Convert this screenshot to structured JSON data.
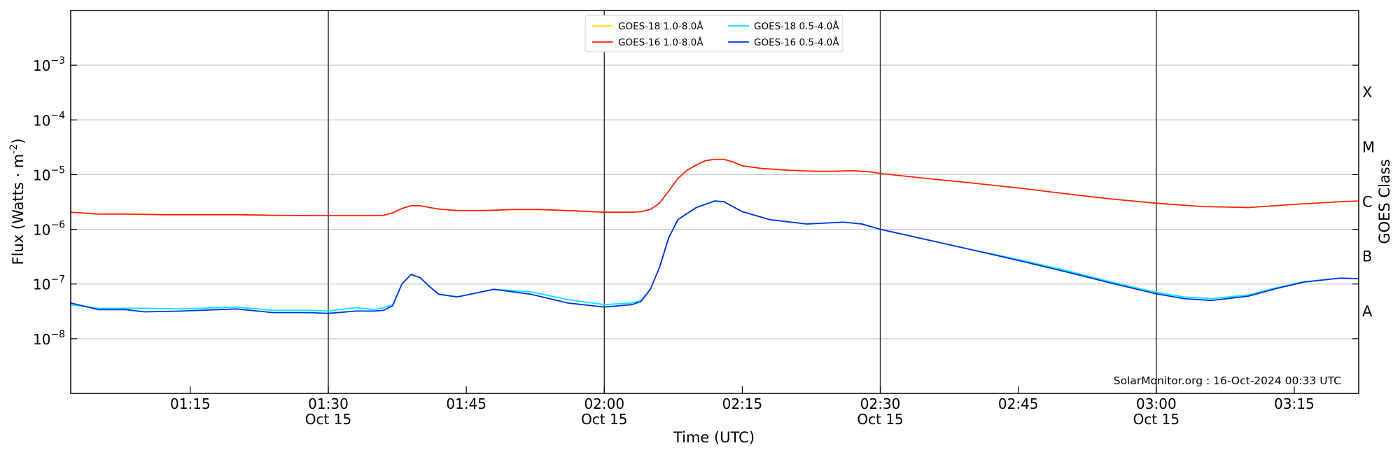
{
  "chart_data": {
    "type": "line",
    "xlabel": "Time (UTC)",
    "ylabel": "Flux (Watts · m",
    "ylabel_exp": "-2",
    "ylabel_close": ")",
    "right_label": "GOES Class",
    "watermark": "SolarMonitor.org : 16-Oct-2024 00:33 UTC",
    "yscale": "log",
    "grid": true,
    "legend_position": "top-center",
    "x_range": [
      "01:02",
      "03:22"
    ],
    "y_range": [
      1e-09,
      0.01
    ],
    "x_ticks": [
      {
        "t": "01:15",
        "label": "01:15",
        "date": ""
      },
      {
        "t": "01:30",
        "label": "01:30",
        "date": "Oct 15"
      },
      {
        "t": "01:45",
        "label": "01:45",
        "date": ""
      },
      {
        "t": "02:00",
        "label": "02:00",
        "date": "Oct 15"
      },
      {
        "t": "02:15",
        "label": "02:15",
        "date": ""
      },
      {
        "t": "02:30",
        "label": "02:30",
        "date": "Oct 15"
      },
      {
        "t": "02:45",
        "label": "02:45",
        "date": ""
      },
      {
        "t": "03:00",
        "label": "03:00",
        "date": "Oct 15"
      },
      {
        "t": "03:15",
        "label": "03:15",
        "date": ""
      }
    ],
    "day_lines": [
      "01:30",
      "02:00",
      "02:30",
      "03:00"
    ],
    "y_ticks": [
      {
        "exp": -8,
        "base": "10",
        "sup": "−8"
      },
      {
        "exp": -7,
        "base": "10",
        "sup": "−7"
      },
      {
        "exp": -6,
        "base": "10",
        "sup": "−6"
      },
      {
        "exp": -5,
        "base": "10",
        "sup": "−5"
      },
      {
        "exp": -4,
        "base": "10",
        "sup": "−4"
      },
      {
        "exp": -3,
        "base": "10",
        "sup": "−3"
      }
    ],
    "goes_classes": [
      {
        "label": "A",
        "exp": -7.5
      },
      {
        "label": "B",
        "exp": -6.5
      },
      {
        "label": "C",
        "exp": -5.5
      },
      {
        "label": "M",
        "exp": -4.5
      },
      {
        "label": "X",
        "exp": -3.5
      }
    ],
    "series": [
      {
        "name": "GOES-18 1.0-8.0Å",
        "color": "#ffd700",
        "x": [],
        "y": []
      },
      {
        "name": "GOES-16 1.0-8.0Å",
        "color": "#ff2000",
        "x": [
          "01:02",
          "01:05",
          "01:08",
          "01:12",
          "01:16",
          "01:20",
          "01:24",
          "01:28",
          "01:32",
          "01:35",
          "01:36",
          "01:37",
          "01:38",
          "01:39",
          "01:40",
          "01:41",
          "01:42",
          "01:44",
          "01:47",
          "01:50",
          "01:53",
          "01:56",
          "02:00",
          "02:03",
          "02:04",
          "02:05",
          "02:06",
          "02:07",
          "02:08",
          "02:09",
          "02:10",
          "02:11",
          "02:12",
          "02:13",
          "02:14",
          "02:15",
          "02:17",
          "02:20",
          "02:23",
          "02:25",
          "02:27",
          "02:29",
          "02:30",
          "02:35",
          "02:40",
          "02:45",
          "02:50",
          "02:55",
          "03:00",
          "03:05",
          "03:10",
          "03:15",
          "03:20",
          "03:22"
        ],
        "y": [
          2.05e-06,
          1.9e-06,
          1.9e-06,
          1.85e-06,
          1.85e-06,
          1.85e-06,
          1.8e-06,
          1.78e-06,
          1.78e-06,
          1.78e-06,
          1.8e-06,
          2e-06,
          2.4e-06,
          2.7e-06,
          2.7e-06,
          2.5e-06,
          2.35e-06,
          2.2e-06,
          2.2e-06,
          2.3e-06,
          2.3e-06,
          2.2e-06,
          2.05e-06,
          2.05e-06,
          2.1e-06,
          2.3e-06,
          3e-06,
          5e-06,
          8.5e-06,
          1.2e-05,
          1.5e-05,
          1.8e-05,
          1.9e-05,
          1.9e-05,
          1.7e-05,
          1.45e-05,
          1.3e-05,
          1.2e-05,
          1.15e-05,
          1.15e-05,
          1.18e-05,
          1.12e-05,
          1.05e-05,
          8.5e-06,
          7e-06,
          5.7e-06,
          4.5e-06,
          3.6e-06,
          3e-06,
          2.6e-06,
          2.5e-06,
          2.85e-06,
          3.2e-06,
          3.3e-06
        ]
      },
      {
        "name": "GOES-18 0.5-4.0Å",
        "color": "#00e5ff",
        "x": [
          "01:02",
          "01:05",
          "01:08",
          "01:10",
          "01:14",
          "01:20",
          "01:24",
          "01:28",
          "01:30",
          "01:33",
          "01:35",
          "01:36",
          "01:37",
          "01:38",
          "01:39",
          "01:40",
          "01:41",
          "01:42",
          "01:44",
          "01:48",
          "01:52",
          "01:56",
          "02:00",
          "02:03",
          "02:04",
          "02:05",
          "02:06",
          "02:07",
          "02:08",
          "02:10",
          "02:12",
          "02:13",
          "02:15",
          "02:18",
          "02:22",
          "02:26",
          "02:28",
          "02:30",
          "02:35",
          "02:40",
          "02:45",
          "02:50",
          "02:55",
          "03:00",
          "03:03",
          "03:06",
          "03:10",
          "03:13",
          "03:16",
          "03:20",
          "03:22"
        ],
        "y": [
          4.2e-08,
          3.6e-08,
          3.6e-08,
          3.6e-08,
          3.5e-08,
          3.8e-08,
          3.3e-08,
          3.3e-08,
          3.2e-08,
          3.7e-08,
          3.4e-08,
          3.7e-08,
          4.2e-08,
          1e-07,
          1.5e-07,
          1.3e-07,
          9e-08,
          6.5e-08,
          5.8e-08,
          8e-08,
          7.2e-08,
          5.2e-08,
          4.2e-08,
          4.5e-08,
          5e-08,
          8e-08,
          2e-07,
          7e-07,
          1.5e-06,
          2.5e-06,
          3.3e-06,
          3.2e-06,
          2.1e-06,
          1.5e-06,
          1.25e-06,
          1.35e-06,
          1.25e-06,
          1e-06,
          6.5e-07,
          4.2e-07,
          2.8e-07,
          1.8e-07,
          1.1e-07,
          7e-08,
          5.8e-08,
          5.4e-08,
          6.3e-08,
          8.5e-08,
          1.1e-07,
          1.28e-07,
          1.25e-07
        ]
      },
      {
        "name": "GOES-16 0.5-4.0Å",
        "color": "#0030e0",
        "x": [
          "01:02",
          "01:05",
          "01:08",
          "01:10",
          "01:14",
          "01:20",
          "01:24",
          "01:28",
          "01:30",
          "01:33",
          "01:35",
          "01:36",
          "01:37",
          "01:38",
          "01:39",
          "01:40",
          "01:41",
          "01:42",
          "01:44",
          "01:48",
          "01:52",
          "01:56",
          "02:00",
          "02:03",
          "02:04",
          "02:05",
          "02:06",
          "02:07",
          "02:08",
          "02:10",
          "02:12",
          "02:13",
          "02:15",
          "02:18",
          "02:22",
          "02:26",
          "02:28",
          "02:30",
          "02:35",
          "02:40",
          "02:45",
          "02:50",
          "02:55",
          "03:00",
          "03:03",
          "03:06",
          "03:10",
          "03:13",
          "03:16",
          "03:20",
          "03:22"
        ],
        "y": [
          4.5e-08,
          3.4e-08,
          3.4e-08,
          3.1e-08,
          3.2e-08,
          3.5e-08,
          3e-08,
          3e-08,
          2.9e-08,
          3.2e-08,
          3.2e-08,
          3.3e-08,
          4e-08,
          1e-07,
          1.5e-07,
          1.3e-07,
          9e-08,
          6.5e-08,
          5.8e-08,
          8e-08,
          6.5e-08,
          4.5e-08,
          3.8e-08,
          4.2e-08,
          4.8e-08,
          8e-08,
          2e-07,
          7e-07,
          1.5e-06,
          2.5e-06,
          3.3e-06,
          3.2e-06,
          2.1e-06,
          1.5e-06,
          1.25e-06,
          1.35e-06,
          1.25e-06,
          1e-06,
          6.5e-07,
          4.2e-07,
          2.7e-07,
          1.7e-07,
          1.05e-07,
          6.6e-08,
          5.4e-08,
          5e-08,
          6e-08,
          8.2e-08,
          1.08e-07,
          1.28e-07,
          1.25e-07
        ]
      }
    ]
  }
}
